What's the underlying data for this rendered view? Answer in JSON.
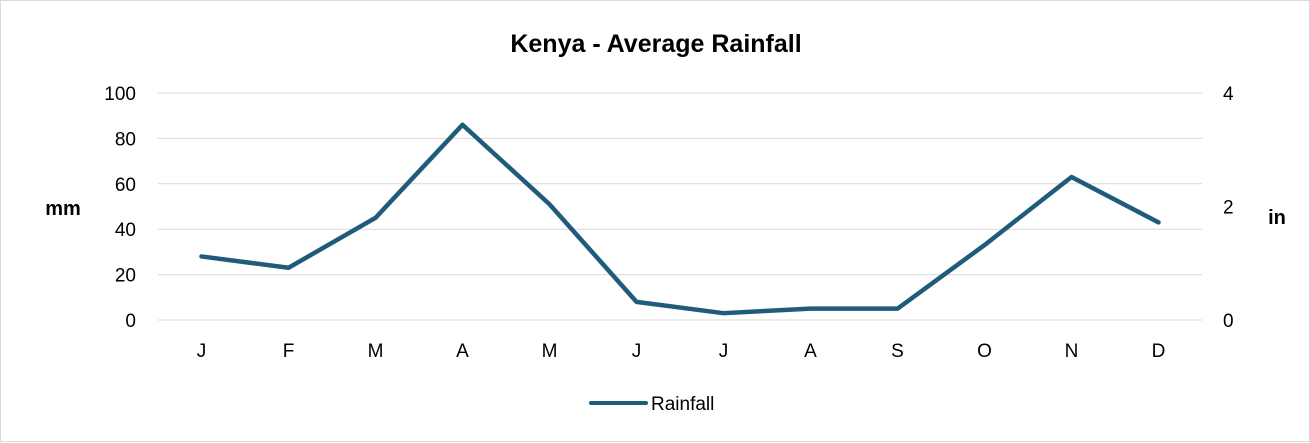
{
  "chart_data": {
    "type": "line",
    "title": "Kenya - Average Rainfall",
    "categories": [
      "J",
      "F",
      "M",
      "A",
      "M",
      "J",
      "J",
      "A",
      "S",
      "O",
      "N",
      "D"
    ],
    "series": [
      {
        "name": "Rainfall",
        "values": [
          28,
          23,
          45,
          86,
          51,
          8,
          3,
          5,
          5,
          33,
          63,
          43
        ]
      }
    ],
    "ylabel": "mm",
    "ylim": [
      0,
      100
    ],
    "yticks": [
      "0",
      "20",
      "40",
      "60",
      "80",
      "100"
    ],
    "y2label": "in",
    "y2lim": [
      0,
      4
    ],
    "y2ticks": [
      "0",
      "2",
      "4"
    ],
    "grid": true,
    "legend_position": "bottom",
    "line_color": "#1f5b7a",
    "grid_color": "#d9d9d9"
  }
}
